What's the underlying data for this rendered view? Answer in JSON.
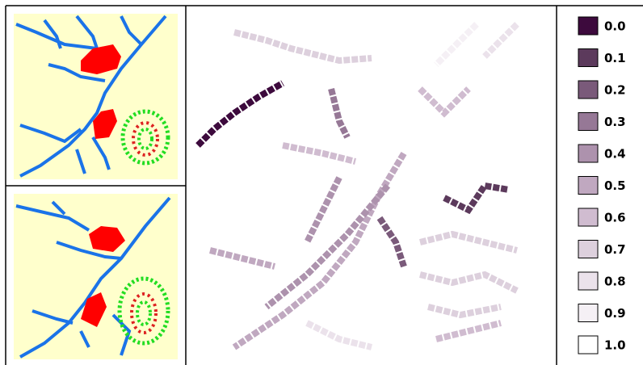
{
  "legend": {
    "items": [
      {
        "label": "0.0",
        "color": "#3d0a3d"
      },
      {
        "label": "0.1",
        "color": "#5c3a5c"
      },
      {
        "label": "0.2",
        "color": "#7a5a7a"
      },
      {
        "label": "0.3",
        "color": "#967896"
      },
      {
        "label": "0.4",
        "color": "#ad92ad"
      },
      {
        "label": "0.5",
        "color": "#c0a8c0"
      },
      {
        "label": "0.6",
        "color": "#d0bcd0"
      },
      {
        "label": "0.7",
        "color": "#ddd0dd"
      },
      {
        "label": "0.8",
        "color": "#ebe2eb"
      },
      {
        "label": "0.9",
        "color": "#f5f0f5"
      },
      {
        "label": "1.0",
        "color": "#ffffff"
      }
    ]
  }
}
